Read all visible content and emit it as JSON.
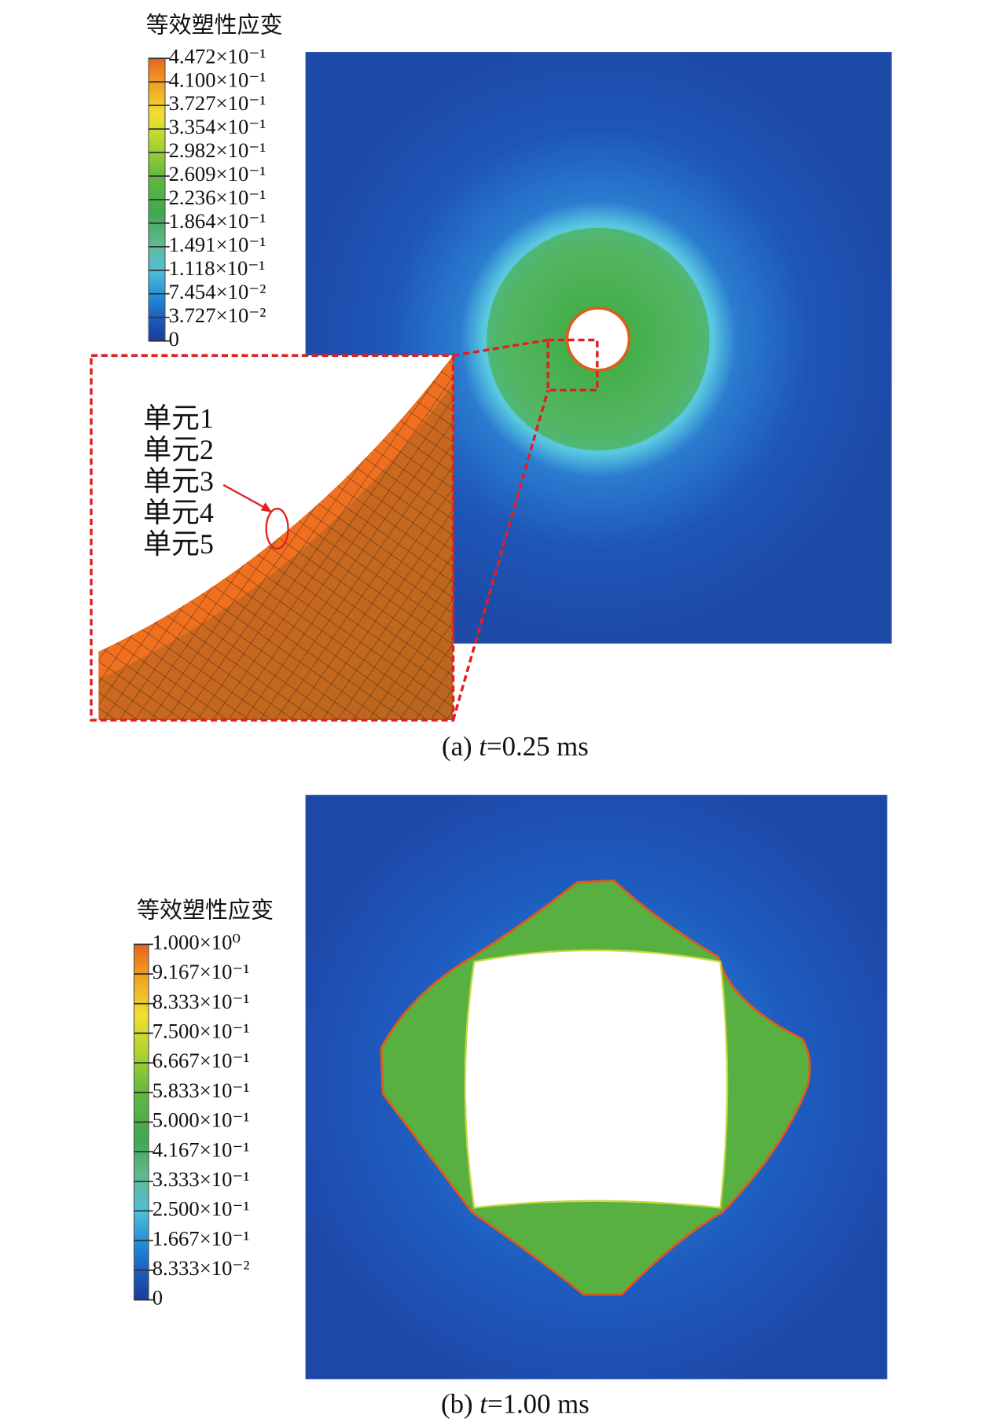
{
  "panel_a": {
    "legend_title": "等效塑性应变",
    "legend_labels": [
      "4.472×10⁻¹",
      "4.100×10⁻¹",
      "3.727×10⁻¹",
      "3.354×10⁻¹",
      "2.982×10⁻¹",
      "2.609×10⁻¹",
      "2.236×10⁻¹",
      "1.864×10⁻¹",
      "1.491×10⁻¹",
      "1.118×10⁻¹",
      "7.454×10⁻²",
      "3.727×10⁻²",
      "0"
    ],
    "element_labels": [
      "单元1",
      "单元2",
      "单元3",
      "单元4",
      "单元5"
    ],
    "caption": {
      "prefix": "(a) ",
      "variable": "t",
      "rest": "=0.25 ms"
    }
  },
  "panel_b": {
    "legend_title": "等效塑性应变",
    "legend_labels": [
      "1.000×10⁰",
      "9.167×10⁻¹",
      "8.333×10⁻¹",
      "7.500×10⁻¹",
      "6.667×10⁻¹",
      "5.833×10⁻¹",
      "5.000×10⁻¹",
      "4.167×10⁻¹",
      "3.333×10⁻¹",
      "2.500×10⁻¹",
      "1.667×10⁻¹",
      "8.333×10⁻²",
      "0"
    ],
    "caption": {
      "prefix": "(b) ",
      "variable": "t",
      "rest": "=1.00 ms"
    }
  }
}
